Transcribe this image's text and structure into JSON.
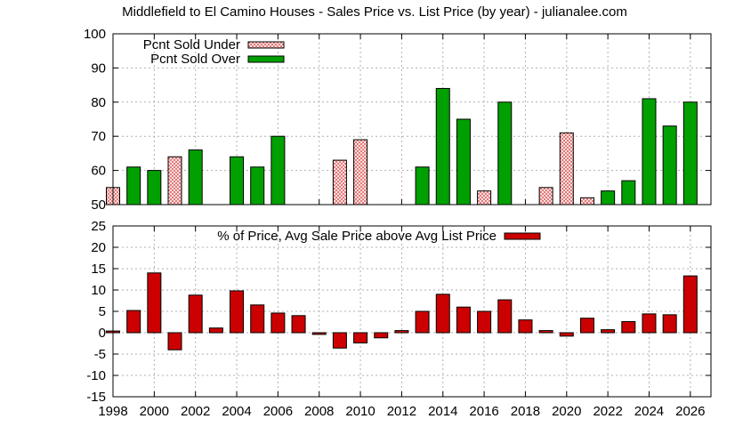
{
  "title": "Middlefield to El Camino Houses - Sales Price vs. List Price (by year) - julianalee.com",
  "colors": {
    "under": "#e06666",
    "over": "#00a000",
    "avg": "#cc0000",
    "grid": "#b0b0b0"
  },
  "chart_data": [
    {
      "type": "bar",
      "name": "sold-under-over",
      "ylim": [
        50,
        100
      ],
      "yticks": [
        50,
        60,
        70,
        80,
        90,
        100
      ],
      "xlim": [
        1998,
        2027
      ],
      "grid": true,
      "legend_position": "top-left",
      "series": [
        {
          "name": "Pcnt Sold Under",
          "pattern": "crosshatch",
          "points": [
            {
              "x": 1998,
              "y": 55
            },
            {
              "x": 2001,
              "y": 64
            },
            {
              "x": 2009,
              "y": 63
            },
            {
              "x": 2010,
              "y": 69
            },
            {
              "x": 2016,
              "y": 54
            },
            {
              "x": 2019,
              "y": 55
            },
            {
              "x": 2020,
              "y": 71
            },
            {
              "x": 2021,
              "y": 52
            }
          ]
        },
        {
          "name": "Pcnt Sold Over",
          "pattern": "solid",
          "points": [
            {
              "x": 1999,
              "y": 61
            },
            {
              "x": 2000,
              "y": 60
            },
            {
              "x": 2002,
              "y": 66
            },
            {
              "x": 2004,
              "y": 64
            },
            {
              "x": 2005,
              "y": 61
            },
            {
              "x": 2006,
              "y": 70
            },
            {
              "x": 2013,
              "y": 61
            },
            {
              "x": 2014,
              "y": 84
            },
            {
              "x": 2015,
              "y": 75
            },
            {
              "x": 2017,
              "y": 80
            },
            {
              "x": 2022,
              "y": 54
            },
            {
              "x": 2023,
              "y": 57
            },
            {
              "x": 2024,
              "y": 81
            },
            {
              "x": 2025,
              "y": 73
            },
            {
              "x": 2026,
              "y": 80
            }
          ]
        }
      ]
    },
    {
      "type": "bar",
      "name": "avg-sale-above-list",
      "ylim": [
        -15,
        25
      ],
      "yticks": [
        -15,
        -10,
        -5,
        0,
        5,
        10,
        15,
        20,
        25
      ],
      "xlim": [
        1998,
        2027
      ],
      "xticks": [
        1998,
        2000,
        2002,
        2004,
        2006,
        2008,
        2010,
        2012,
        2014,
        2016,
        2018,
        2020,
        2022,
        2024,
        2026
      ],
      "grid": true,
      "legend_position": "top-center",
      "series": [
        {
          "name": "% of Price, Avg Sale Price above Avg List Price",
          "x": [
            1998,
            1999,
            2000,
            2001,
            2002,
            2003,
            2004,
            2005,
            2006,
            2007,
            2008,
            2009,
            2010,
            2011,
            2012,
            2013,
            2014,
            2015,
            2016,
            2017,
            2018,
            2019,
            2020,
            2021,
            2022,
            2023,
            2024,
            2025,
            2026
          ],
          "values": [
            0.4,
            5.2,
            14,
            -4,
            8.8,
            1.1,
            9.8,
            6.5,
            4.6,
            4,
            -0.4,
            -3.6,
            -2.4,
            -1.2,
            0.5,
            5,
            9,
            6,
            5,
            7.7,
            3,
            0.5,
            -0.8,
            3.4,
            0.7,
            2.6,
            4.4,
            4.2,
            13.3
          ]
        }
      ]
    }
  ]
}
